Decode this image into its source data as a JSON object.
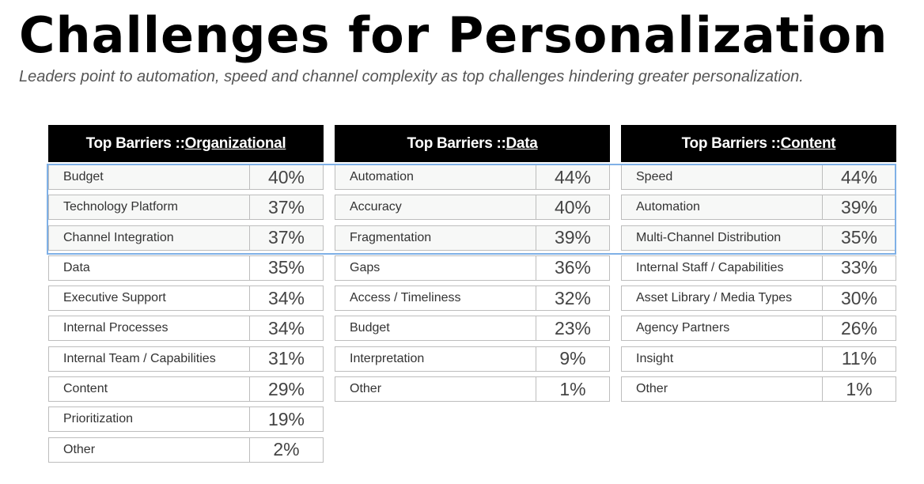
{
  "title": "Challenges for Personalization",
  "subtitle": "Leaders point to automation, speed and channel complexity as top challenges hindering greater personalization.",
  "colors": {
    "header_bg": "#000000",
    "highlight_border": "#7fb0e6"
  },
  "panels": [
    {
      "prefix": "Top Barriers :: ",
      "keyword": "Organizational",
      "rows": [
        {
          "label": "Budget",
          "value": "40%"
        },
        {
          "label": "Technology Platform",
          "value": "37%"
        },
        {
          "label": "Channel Integration",
          "value": "37%"
        },
        {
          "label": "Data",
          "value": "35%"
        },
        {
          "label": "Executive Support",
          "value": "34%"
        },
        {
          "label": "Internal Processes",
          "value": "34%"
        },
        {
          "label": "Internal Team / Capabilities",
          "value": "31%"
        },
        {
          "label": "Content",
          "value": "29%"
        },
        {
          "label": "Prioritization",
          "value": "19%"
        },
        {
          "label": "Other",
          "value": "2%"
        }
      ]
    },
    {
      "prefix": "Top Barriers :: ",
      "keyword": "Data",
      "rows": [
        {
          "label": "Automation",
          "value": "44%"
        },
        {
          "label": "Accuracy",
          "value": "40%"
        },
        {
          "label": "Fragmentation",
          "value": "39%"
        },
        {
          "label": "Gaps",
          "value": "36%"
        },
        {
          "label": "Access / Timeliness",
          "value": "32%"
        },
        {
          "label": "Budget",
          "value": "23%"
        },
        {
          "label": "Interpretation",
          "value": "9%"
        },
        {
          "label": "Other",
          "value": "1%"
        }
      ]
    },
    {
      "prefix": "Top Barriers :: ",
      "keyword": "Content",
      "rows": [
        {
          "label": "Speed",
          "value": "44%"
        },
        {
          "label": "Automation",
          "value": "39%"
        },
        {
          "label": "Multi-Channel Distribution",
          "value": "35%"
        },
        {
          "label": "Internal Staff / Capabilities",
          "value": "33%"
        },
        {
          "label": "Asset Library / Media Types",
          "value": "30%"
        },
        {
          "label": "Agency Partners",
          "value": "26%"
        },
        {
          "label": "Insight",
          "value": "11%"
        },
        {
          "label": "Other",
          "value": "1%"
        }
      ]
    }
  ]
}
